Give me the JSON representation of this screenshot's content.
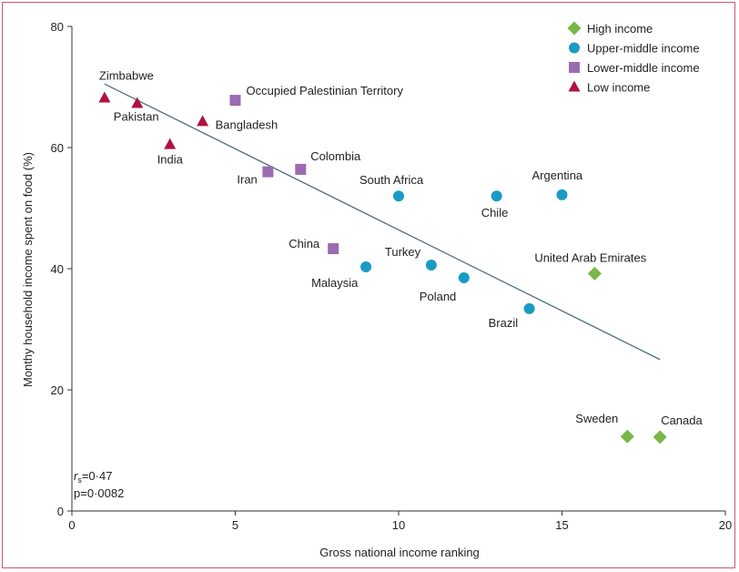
{
  "chart_data": {
    "type": "scatter",
    "xlabel": "Gross national income ranking",
    "ylabel": "Monthy household income spent on food (%)",
    "xlim": [
      0,
      20
    ],
    "ylim": [
      0,
      80
    ],
    "xticks": [
      0,
      5,
      10,
      15,
      20
    ],
    "yticks": [
      0,
      20,
      40,
      60,
      80
    ],
    "grid": false,
    "legend_position": "top-right",
    "stats": {
      "r_label": "r",
      "r_sub": "s",
      "r_value": "=0·47",
      "p_text": "p=0·0082"
    },
    "trendline": {
      "x1": 1,
      "y1": 70.5,
      "x2": 18,
      "y2": 25
    },
    "trendline_color": "#4a6f82",
    "series": [
      {
        "name": "High income",
        "marker": "diamond",
        "color": "#7ab648",
        "points": [
          {
            "label": "United Arab Emirates",
            "x": 16,
            "y": 39.2
          },
          {
            "label": "Sweden",
            "x": 17,
            "y": 12.3
          },
          {
            "label": "Canada",
            "x": 18,
            "y": 12.2
          }
        ]
      },
      {
        "name": "Upper-middle income",
        "marker": "circle",
        "color": "#1a9bc4",
        "points": [
          {
            "label": "South Africa",
            "x": 10,
            "y": 52
          },
          {
            "label": "Argentina",
            "x": 15,
            "y": 52.2
          },
          {
            "label": "Chile",
            "x": 13,
            "y": 52
          },
          {
            "label": "Malaysia",
            "x": 9,
            "y": 40.3
          },
          {
            "label": "Turkey",
            "x": 11,
            "y": 40.6
          },
          {
            "label": "Poland",
            "x": 12,
            "y": 38.5
          },
          {
            "label": "Brazil",
            "x": 14,
            "y": 33.4
          }
        ]
      },
      {
        "name": "Lower-middle income",
        "marker": "square",
        "color": "#9b6bb0",
        "points": [
          {
            "label": "Occupied Palestinian Territory",
            "x": 5,
            "y": 67.8
          },
          {
            "label": "Iran",
            "x": 6,
            "y": 56
          },
          {
            "label": "Colombia",
            "x": 7,
            "y": 56.4
          },
          {
            "label": "China",
            "x": 8,
            "y": 43.3
          }
        ]
      },
      {
        "name": "Low income",
        "marker": "triangle",
        "color": "#b0123f",
        "points": [
          {
            "label": "Zimbabwe",
            "x": 1,
            "y": 68.2
          },
          {
            "label": "Pakistan",
            "x": 2,
            "y": 67.3
          },
          {
            "label": "India",
            "x": 3,
            "y": 60.5
          },
          {
            "label": "Bangladesh",
            "x": 4,
            "y": 64.3
          }
        ]
      }
    ]
  }
}
